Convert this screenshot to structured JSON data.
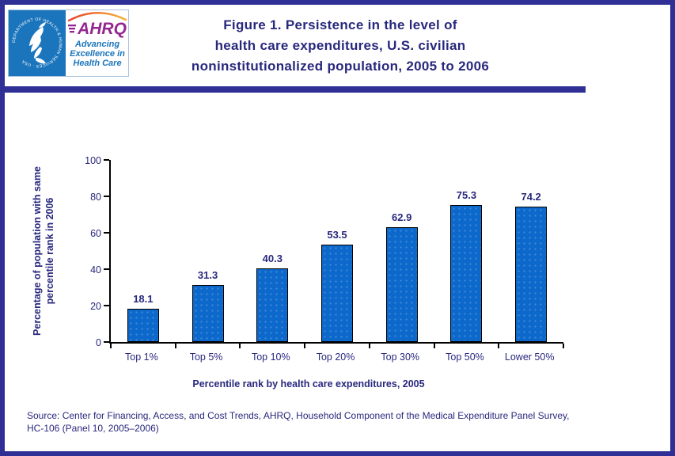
{
  "header": {
    "title_lines": [
      "Figure 1. Persistence in the level of",
      "health care expenditures, U.S. civilian",
      "noninstitutionalized population, 2005 to 2006"
    ]
  },
  "logo": {
    "seal_text": "DEPARTMENT OF HEALTH & HUMAN SERVICES · USA",
    "ahrq_acronym": "AHRQ",
    "tagline_lines": [
      "Advancing",
      "Excellence in",
      "Health Care"
    ]
  },
  "chart_data": {
    "type": "bar",
    "categories": [
      "Top 1%",
      "Top 5%",
      "Top 10%",
      "Top 20%",
      "Top 30%",
      "Top 50%",
      "Lower 50%"
    ],
    "values": [
      18.1,
      31.3,
      40.3,
      53.5,
      62.9,
      75.3,
      74.2
    ],
    "title": "Figure 1. Persistence in the level of health care expenditures, U.S. civilian noninstitutionalized population, 2005 to 2006",
    "xlabel": "Percentile rank by health care expenditures, 2005",
    "ylabel": "Percentage of population with same percentile rank in 2006",
    "ylabel_lines": [
      "Percentage of population with same",
      "percentile rank in 2006"
    ],
    "ylim": [
      0,
      100
    ],
    "yticks": [
      0,
      20,
      40,
      60,
      80,
      100
    ],
    "grid": false,
    "legend": "none",
    "bar_color": "#0D68CB"
  },
  "source": {
    "lines": [
      "Source: Center for Financing, Access, and Cost Trends, AHRQ, Household Component of the Medical Expenditure Panel Survey,",
      "HC-106 (Panel 10, 2005–2006)"
    ]
  },
  "colors": {
    "navy_text": "#28287E",
    "frame_border": "#2F2F96",
    "bar_fill": "#0D68CB",
    "bar_dot": "#3F8BD8",
    "hhs_blue": "#1B75BC",
    "ahrq_purple": "#93278F",
    "arc_start": "#E8412C",
    "arc_end": "#F9B233",
    "axis_black": "#000000"
  }
}
